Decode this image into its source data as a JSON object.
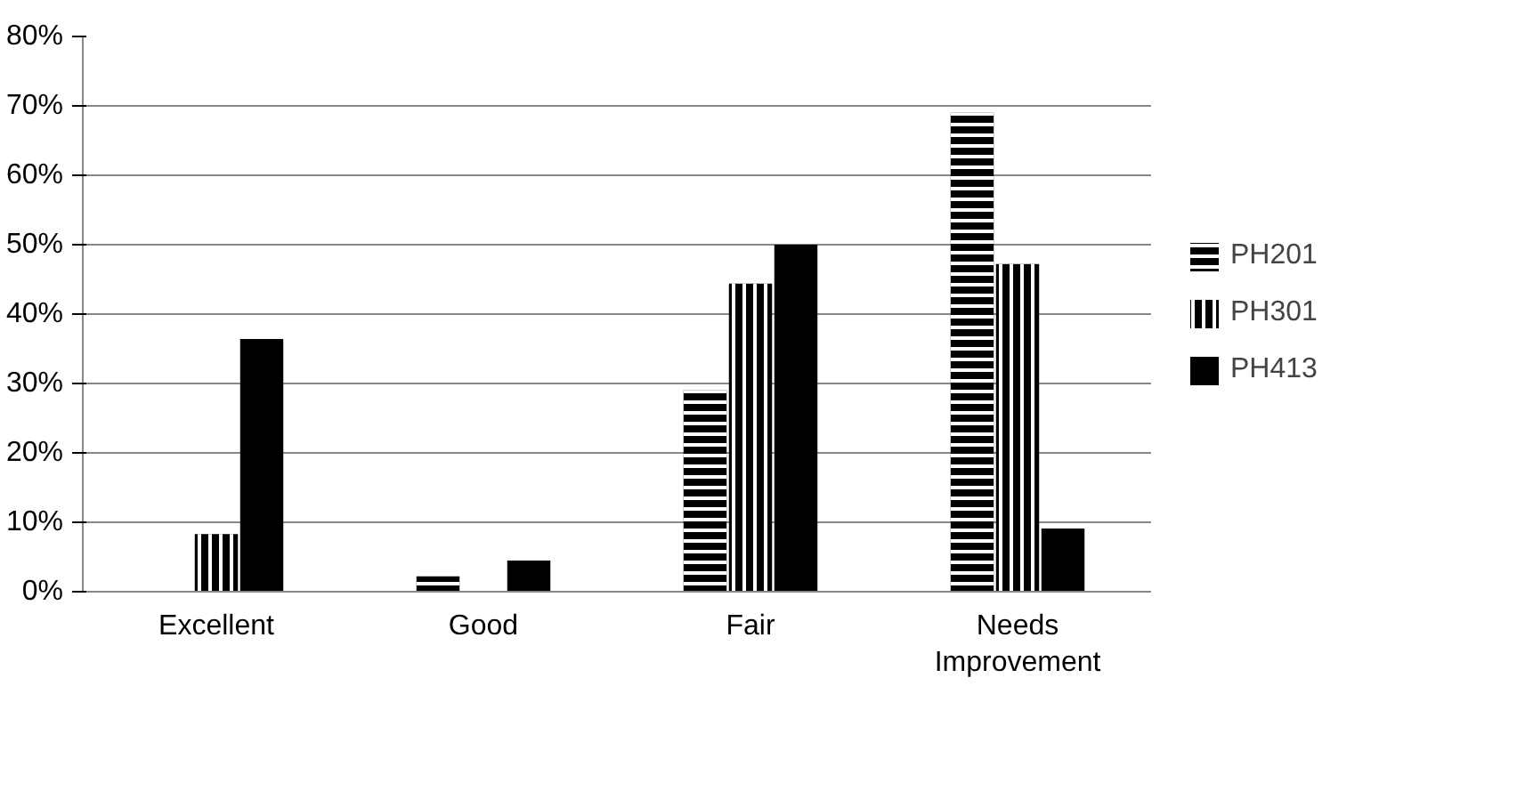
{
  "chart_data": {
    "type": "bar",
    "categories": [
      "Excellent",
      "Good",
      "Fair",
      "Needs Improvement"
    ],
    "series": [
      {
        "name": "PH201",
        "color": "#000000",
        "values": [
          0,
          2.2,
          29,
          69
        ]
      },
      {
        "name": "PH301",
        "color": "#000000",
        "values": [
          8.3,
          0,
          44.4,
          47.2
        ]
      },
      {
        "name": "PH413",
        "color": "#000000",
        "values": [
          36.4,
          4.5,
          50,
          9.1
        ]
      }
    ],
    "ylim": [
      0,
      80
    ],
    "yticks": [
      {
        "value": 0,
        "label": "0%"
      },
      {
        "value": 10,
        "label": "10%"
      },
      {
        "value": 20,
        "label": "20%"
      },
      {
        "value": 30,
        "label": "30%"
      },
      {
        "value": 40,
        "label": "40%"
      },
      {
        "value": 50,
        "label": "50%"
      },
      {
        "value": 60,
        "label": "60%"
      },
      {
        "value": 70,
        "label": "70%"
      },
      {
        "value": 80,
        "label": "80%"
      }
    ],
    "grid": "y",
    "legend": "right"
  }
}
